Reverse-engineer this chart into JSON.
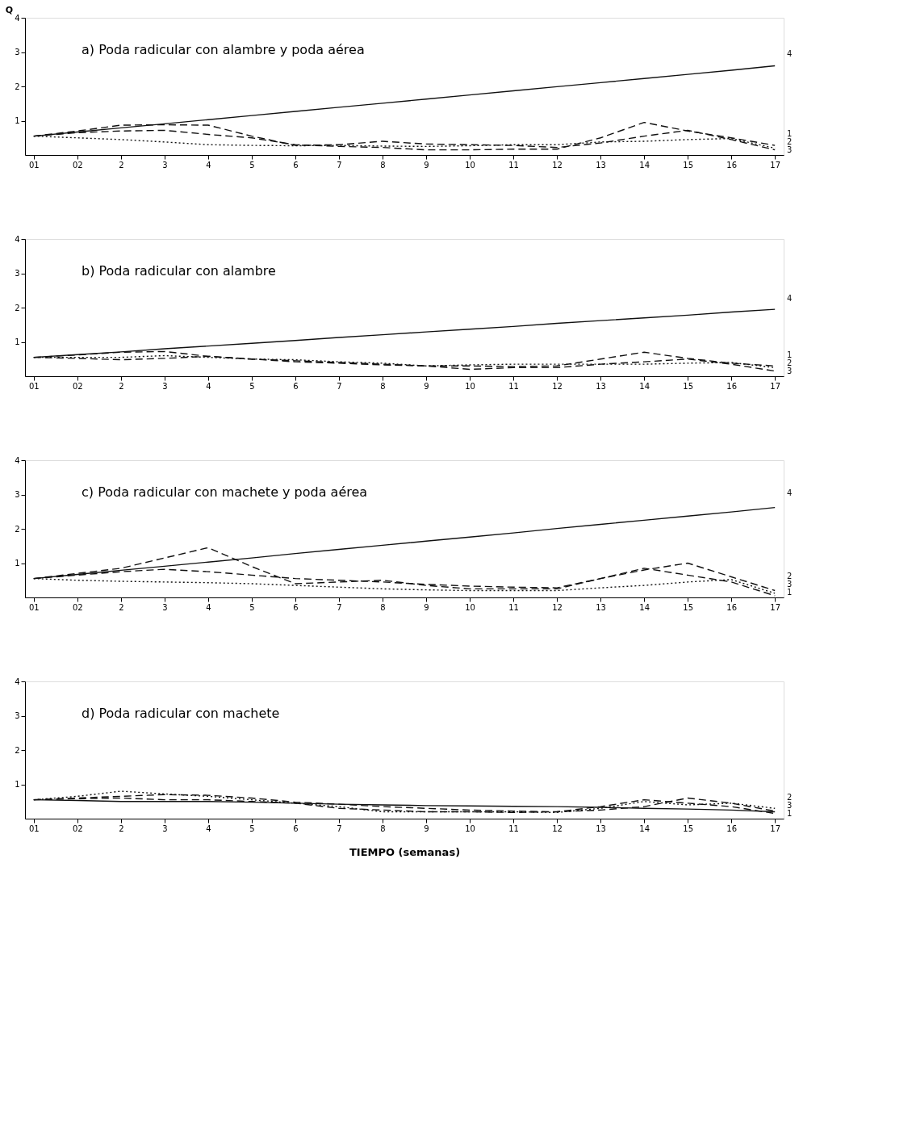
{
  "chart_data": [
    {
      "type": "line",
      "title": "a) Poda radicular con alambre y poda aérea",
      "ylabel": "Q",
      "categories": [
        "01",
        "02",
        "2",
        "3",
        "4",
        "5",
        "6",
        "7",
        "8",
        "9",
        "10",
        "11",
        "12",
        "13",
        "14",
        "15",
        "16",
        "17"
      ],
      "ylim": [
        0,
        4
      ],
      "yticks": [
        1,
        2,
        3,
        4
      ],
      "grid": false,
      "tick_labels": true,
      "series": [
        {
          "name": "1",
          "color": "#111111",
          "line_style": "dashed",
          "values": [
            0.55,
            0.65,
            0.7,
            0.72,
            0.6,
            0.5,
            0.3,
            0.25,
            0.22,
            0.15,
            0.15,
            0.17,
            0.17,
            0.5,
            0.95,
            0.7,
            0.5,
            0.28
          ]
        },
        {
          "name": "2",
          "color": "#111111",
          "line_style": "dotted",
          "values": [
            0.55,
            0.5,
            0.45,
            0.38,
            0.3,
            0.28,
            0.27,
            0.28,
            0.26,
            0.25,
            0.27,
            0.3,
            0.3,
            0.38,
            0.4,
            0.45,
            0.48,
            0.2
          ]
        },
        {
          "name": "3",
          "color": "#111111",
          "line_style": "dashed",
          "values": [
            0.55,
            0.7,
            0.87,
            0.88,
            0.87,
            0.55,
            0.28,
            0.3,
            0.4,
            0.32,
            0.3,
            0.28,
            0.22,
            0.35,
            0.55,
            0.72,
            0.45,
            0.15
          ]
        },
        {
          "name": "4",
          "color": "#111111",
          "line_style": "solid",
          "values": [
            0.55,
            0.67,
            0.79,
            0.91,
            1.03,
            1.15,
            1.27,
            1.39,
            1.51,
            1.63,
            1.75,
            1.87,
            1.99,
            2.11,
            2.23,
            2.35,
            2.47,
            2.6
          ]
        }
      ]
    },
    {
      "type": "line",
      "title": "b) Poda radicular con alambre",
      "categories": [
        "01",
        "02",
        "2",
        "3",
        "4",
        "5",
        "6",
        "7",
        "8",
        "9",
        "10",
        "11",
        "12",
        "13",
        "14",
        "15",
        "16",
        "17"
      ],
      "ylim": [
        0,
        4
      ],
      "yticks": [
        1,
        2,
        3,
        4
      ],
      "grid": false,
      "tick_labels": true,
      "series": [
        {
          "name": "1",
          "color": "#111111",
          "line_style": "dashed",
          "values": [
            0.55,
            0.62,
            0.7,
            0.72,
            0.58,
            0.5,
            0.45,
            0.4,
            0.35,
            0.3,
            0.3,
            0.28,
            0.3,
            0.5,
            0.7,
            0.52,
            0.38,
            0.3
          ]
        },
        {
          "name": "2",
          "color": "#111111",
          "line_style": "dotted",
          "values": [
            0.55,
            0.55,
            0.55,
            0.6,
            0.55,
            0.5,
            0.48,
            0.42,
            0.38,
            0.3,
            0.33,
            0.35,
            0.35,
            0.35,
            0.35,
            0.38,
            0.4,
            0.25
          ]
        },
        {
          "name": "3",
          "color": "#111111",
          "line_style": "dashed",
          "values": [
            0.55,
            0.52,
            0.48,
            0.52,
            0.58,
            0.5,
            0.42,
            0.38,
            0.33,
            0.3,
            0.2,
            0.25,
            0.25,
            0.35,
            0.42,
            0.5,
            0.35,
            0.15
          ]
        },
        {
          "name": "4",
          "color": "#111111",
          "line_style": "solid",
          "values": [
            0.55,
            0.63,
            0.71,
            0.8,
            0.88,
            0.96,
            1.04,
            1.13,
            1.21,
            1.29,
            1.37,
            1.45,
            1.54,
            1.62,
            1.7,
            1.78,
            1.87,
            1.95
          ]
        }
      ]
    },
    {
      "type": "line",
      "title": "c) Poda radicular con machete y poda aérea",
      "categories": [
        "01",
        "02",
        "2",
        "3",
        "4",
        "5",
        "6",
        "7",
        "8",
        "9",
        "10",
        "11",
        "12",
        "13",
        "14",
        "15",
        "16",
        "17"
      ],
      "ylim": [
        0,
        4
      ],
      "yticks": [
        1,
        2,
        3,
        4
      ],
      "grid": false,
      "tick_labels": true,
      "series": [
        {
          "name": "1",
          "color": "#111111",
          "line_style": "dashed",
          "values": [
            0.55,
            0.7,
            0.85,
            1.15,
            1.45,
            0.9,
            0.4,
            0.45,
            0.5,
            0.35,
            0.25,
            0.25,
            0.25,
            0.55,
            0.85,
            0.65,
            0.45,
            0.05
          ]
        },
        {
          "name": "2",
          "color": "#111111",
          "line_style": "dashed",
          "values": [
            0.55,
            0.65,
            0.75,
            0.82,
            0.75,
            0.65,
            0.55,
            0.5,
            0.45,
            0.38,
            0.33,
            0.3,
            0.28,
            0.55,
            0.8,
            1.0,
            0.6,
            0.2
          ]
        },
        {
          "name": "3",
          "color": "#111111",
          "line_style": "dotted",
          "values": [
            0.55,
            0.5,
            0.47,
            0.45,
            0.43,
            0.4,
            0.35,
            0.3,
            0.25,
            0.22,
            0.2,
            0.2,
            0.2,
            0.28,
            0.35,
            0.45,
            0.52,
            0.12
          ]
        },
        {
          "name": "4",
          "color": "#111111",
          "line_style": "solid",
          "values": [
            0.55,
            0.67,
            0.79,
            0.91,
            1.03,
            1.15,
            1.28,
            1.4,
            1.52,
            1.64,
            1.76,
            1.88,
            2.01,
            2.13,
            2.25,
            2.37,
            2.49,
            2.62
          ]
        }
      ]
    },
    {
      "type": "line",
      "title": "d) Poda radicular con machete",
      "xlabel": "TIEMPO (semanas)",
      "categories": [
        "01",
        "02",
        "2",
        "3",
        "4",
        "5",
        "6",
        "7",
        "8",
        "9",
        "10",
        "11",
        "12",
        "13",
        "14",
        "15",
        "16",
        "17"
      ],
      "ylim": [
        0,
        4
      ],
      "yticks": [
        1,
        2,
        3,
        4
      ],
      "grid": false,
      "tick_labels": true,
      "series": [
        {
          "name": "1",
          "color": "#111111",
          "line_style": "dashed",
          "values": [
            0.55,
            0.6,
            0.65,
            0.7,
            0.68,
            0.6,
            0.48,
            0.42,
            0.35,
            0.3,
            0.25,
            0.22,
            0.2,
            0.35,
            0.55,
            0.45,
            0.35,
            0.15
          ]
        },
        {
          "name": "2",
          "color": "#111111",
          "line_style": "dotted",
          "values": [
            0.55,
            0.65,
            0.8,
            0.72,
            0.65,
            0.55,
            0.45,
            0.35,
            0.2,
            0.2,
            0.2,
            0.2,
            0.18,
            0.3,
            0.5,
            0.4,
            0.45,
            0.3
          ]
        },
        {
          "name": "3",
          "color": "#111111",
          "line_style": "dashed",
          "values": [
            0.55,
            0.58,
            0.6,
            0.55,
            0.55,
            0.5,
            0.45,
            0.3,
            0.25,
            0.2,
            0.2,
            0.18,
            0.2,
            0.25,
            0.35,
            0.6,
            0.45,
            0.22
          ]
        },
        {
          "color": "#111111",
          "line_style": "solid",
          "values": [
            0.55,
            0.53,
            0.5,
            0.5,
            0.5,
            0.48,
            0.45,
            0.42,
            0.4,
            0.38,
            0.37,
            0.36,
            0.35,
            0.33,
            0.3,
            0.28,
            0.25,
            0.2
          ]
        }
      ]
    }
  ]
}
